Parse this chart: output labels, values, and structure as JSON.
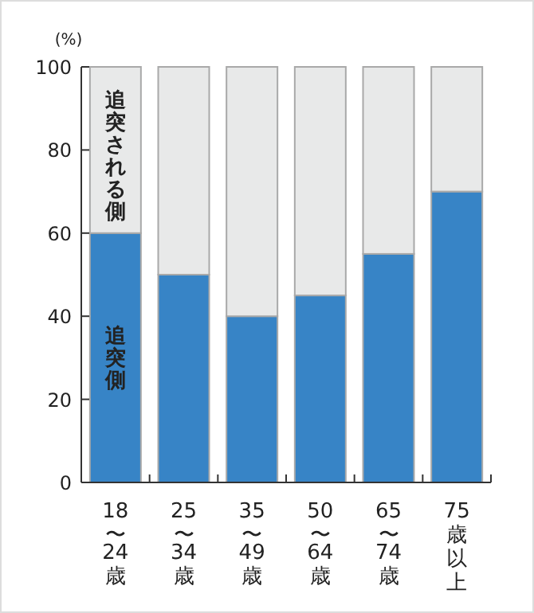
{
  "chart_data": {
    "type": "bar",
    "stacked": true,
    "ylabel": "(%)",
    "categories": [
      "18〜24歳",
      "25〜34歳",
      "35〜49歳",
      "50〜64歳",
      "65〜74歳",
      "75歳以上"
    ],
    "series": [
      {
        "name": "追突側",
        "color": "#3784c6",
        "values": [
          60,
          50,
          40,
          45,
          55,
          70
        ]
      },
      {
        "name": "追突される側",
        "color": "#e8e9e9",
        "values": [
          40,
          50,
          60,
          55,
          45,
          30
        ]
      }
    ],
    "ylim": [
      0,
      100
    ],
    "yticks": [
      0,
      20,
      40,
      60,
      80,
      100
    ]
  }
}
